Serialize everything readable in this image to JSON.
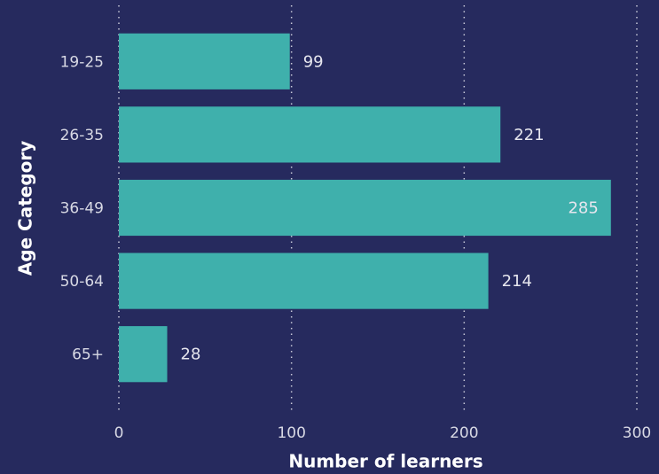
{
  "chart_data": {
    "type": "bar",
    "orientation": "horizontal",
    "x_label": "Number of learners",
    "y_label": "Age Category",
    "categories": [
      "19-25",
      "26-35",
      "36-49",
      "50-64",
      "65+"
    ],
    "values": [
      99,
      221,
      285,
      214,
      28
    ],
    "color": "#3fb0ac",
    "xlim": [
      0,
      300
    ],
    "xticks": [
      0,
      100,
      200,
      300
    ],
    "grid": true
  }
}
